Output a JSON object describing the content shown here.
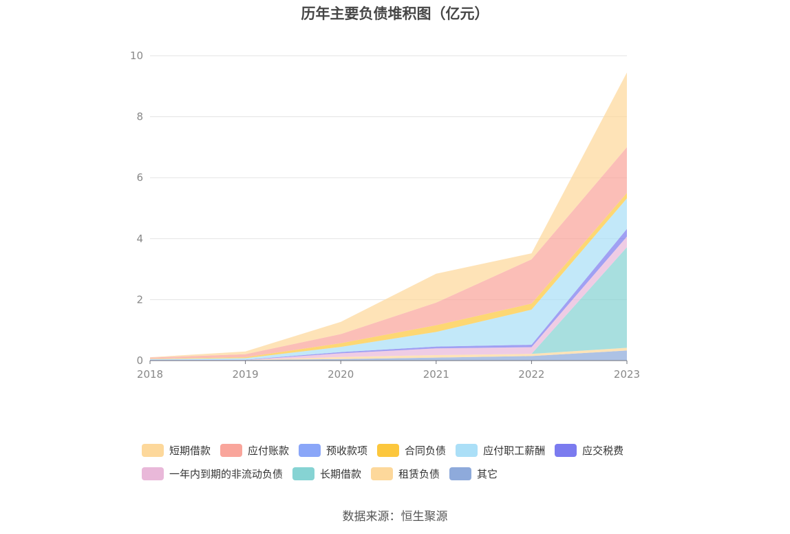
{
  "chart_data": {
    "type": "area",
    "stacked": true,
    "title": "历年主要负债堆积图（亿元）",
    "source": "数据来源：恒生聚源",
    "x": [
      "2018",
      "2019",
      "2020",
      "2021",
      "2022",
      "2023"
    ],
    "ylim": [
      0,
      10
    ],
    "yticks": [
      "0",
      "2",
      "4",
      "6",
      "8",
      "10"
    ],
    "grid": true,
    "legend_position": "bottom",
    "series": [
      {
        "name": "其它",
        "color": "#8eaadb",
        "values": [
          0.02,
          0.02,
          0.05,
          0.1,
          0.15,
          0.33
        ]
      },
      {
        "name": "租赁负债",
        "color": "#fdd89b",
        "values": [
          0.0,
          0.0,
          0.07,
          0.08,
          0.07,
          0.09
        ]
      },
      {
        "name": "长期借款",
        "color": "#86d3d3",
        "values": [
          0.0,
          0.0,
          0.0,
          0.0,
          0.0,
          3.3
        ]
      },
      {
        "name": "一年内到期的非流动负债",
        "color": "#e9b8d9",
        "values": [
          0.0,
          0.0,
          0.12,
          0.22,
          0.22,
          0.35
        ]
      },
      {
        "name": "应交税费",
        "color": "#7b7bef",
        "values": [
          0.01,
          0.01,
          0.04,
          0.06,
          0.08,
          0.25
        ]
      },
      {
        "name": "应付职工薪酬",
        "color": "#abdff7",
        "values": [
          0.02,
          0.05,
          0.17,
          0.48,
          1.15,
          1.0
        ]
      },
      {
        "name": "合同负债",
        "color": "#fcc73d",
        "values": [
          0.01,
          0.03,
          0.12,
          0.22,
          0.2,
          0.18
        ]
      },
      {
        "name": "预收款项",
        "color": "#8aa6f8",
        "values": [
          0.0,
          0.0,
          0.0,
          0.0,
          0.0,
          0.0
        ]
      },
      {
        "name": "应付账款",
        "color": "#f9a59b",
        "values": [
          0.04,
          0.1,
          0.3,
          0.74,
          1.45,
          1.5
        ]
      },
      {
        "name": "短期借款",
        "color": "#fdd89b",
        "values": [
          0.01,
          0.09,
          0.4,
          0.95,
          0.2,
          2.45
        ]
      }
    ]
  },
  "legend": {
    "rows": [
      [
        {
          "label": "短期借款",
          "color": "#fdd89b"
        },
        {
          "label": "应付账款",
          "color": "#f9a59b"
        },
        {
          "label": "预收款项",
          "color": "#8aa6f8"
        },
        {
          "label": "合同负债",
          "color": "#fcc73d"
        },
        {
          "label": "应付职工薪酬",
          "color": "#abdff7"
        },
        {
          "label": "应交税费",
          "color": "#7b7bef"
        }
      ],
      [
        {
          "label": "一年内到期的非流动负债",
          "color": "#e9b8d9"
        },
        {
          "label": "长期借款",
          "color": "#86d3d3"
        },
        {
          "label": "租赁负债",
          "color": "#fdd89b"
        },
        {
          "label": "其它",
          "color": "#8eaadb"
        }
      ]
    ]
  }
}
